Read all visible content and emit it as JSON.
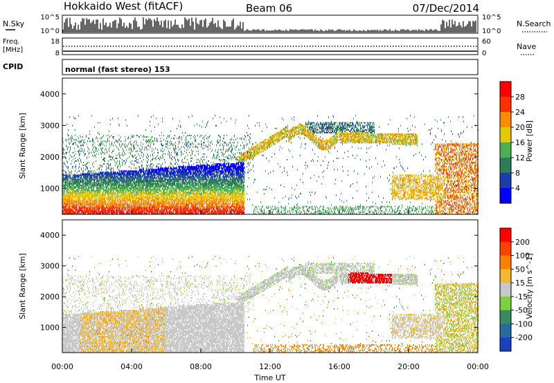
{
  "header": {
    "title": "Hokkaido West (fitACF)",
    "beam": "Beam 06",
    "date": "07/Dec/2014"
  },
  "strips": {
    "nsky_label": "N.Sky",
    "nsearch_label": "N.Search",
    "noise_ticks": [
      "10^5",
      "10^0"
    ],
    "freq_label_line1": "Freq.",
    "freq_label_line2": "[MHz]",
    "freq_ticks": [
      "18",
      "8"
    ],
    "nave_label": "Nave",
    "nave_ticks": [
      "60",
      "0"
    ],
    "cpid_label": "CPID",
    "cpid_text": "normal (fast stereo) 153"
  },
  "chart_data": [
    {
      "type": "heatmap",
      "name": "power",
      "xlabel": "",
      "ylabel": "Slant Range [km]",
      "xlim": [
        0,
        24
      ],
      "ylim": [
        180,
        4500
      ],
      "yticks": [
        "1000",
        "2000",
        "3000",
        "4000"
      ],
      "colorbar_label": "Power [dB]",
      "colorbar_ticks": [
        "4",
        "8",
        "12",
        "16",
        "20",
        "24",
        "28"
      ],
      "colors": [
        "#0000ff",
        "#1a3fa8",
        "#2e7d5a",
        "#4caf50",
        "#e6c800",
        "#ff8c00",
        "#ff3000",
        "#ff0000"
      ]
    },
    {
      "type": "heatmap",
      "name": "velocity",
      "xlabel": "Time UT",
      "ylabel": "Slant Range [km]",
      "xlim": [
        0,
        24
      ],
      "ylim": [
        180,
        4500
      ],
      "xticks": [
        "00:00",
        "04:00",
        "08:00",
        "12:00",
        "16:00",
        "20:00",
        "00:00"
      ],
      "yticks": [
        "1000",
        "2000",
        "3000",
        "4000"
      ],
      "colorbar_label": "Velocity [m s^-1]",
      "colorbar_ticks": [
        "200",
        "100",
        "50",
        "15",
        "-15",
        "-50",
        "-100",
        "-200"
      ],
      "colors": [
        "#1a3fc0",
        "#2a6aa0",
        "#3a8a60",
        "#7fd040",
        "#c8c8c8",
        "#f5b830",
        "#ff8000",
        "#ff4000",
        "#ff0000"
      ]
    }
  ]
}
